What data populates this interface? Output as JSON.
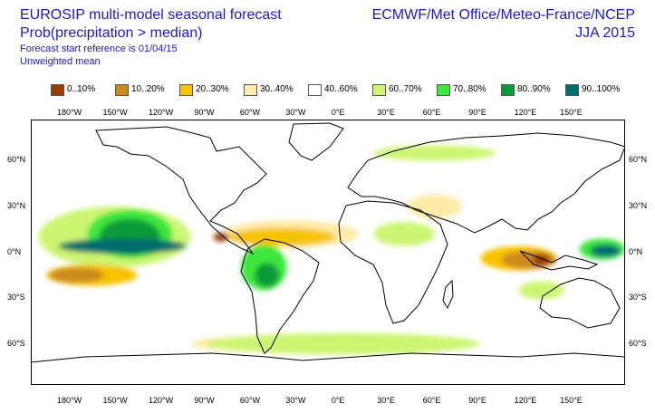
{
  "header": {
    "title": "EUROSIP multi-model seasonal forecast",
    "subtitle": "Prob(precipitation > median)",
    "reference": "Forecast start reference is 01/04/15",
    "mean_type": "Unweighted mean",
    "centres": "ECMWF/Met Office/Meteo-France/NCEP",
    "season": "JJA 2015"
  },
  "legend": [
    {
      "label": "0..10%",
      "color": "#9c3a00"
    },
    {
      "label": "10..20%",
      "color": "#cc8a1c"
    },
    {
      "label": "20..30%",
      "color": "#f7c300"
    },
    {
      "label": "30..40%",
      "color": "#ffeaa8"
    },
    {
      "label": "40..60%",
      "color": "#ffffff"
    },
    {
      "label": "60..70%",
      "color": "#ccf572"
    },
    {
      "label": "70..80%",
      "color": "#3ee63e"
    },
    {
      "label": "80..90%",
      "color": "#0a9a3a"
    },
    {
      "label": "90..100%",
      "color": "#006d6d"
    }
  ],
  "axes": {
    "lon_ticks_top": [
      "180°W",
      "150°W",
      "120°W",
      "90°W",
      "60°W",
      "30°W",
      "0°E",
      "30°E",
      "60°E",
      "90°E",
      "120°E",
      "150°E"
    ],
    "lon_ticks_bottom": [
      "180°W",
      "150°W",
      "120°W",
      "90°W",
      "60°W",
      "30°W",
      "0°E",
      "30°E",
      "60°E",
      "90°E",
      "120°E",
      "150°E"
    ],
    "lat_ticks": [
      "60°N",
      "30°N",
      "0°N",
      "30°S",
      "60°S"
    ]
  },
  "map": {
    "projection": "equirectangular",
    "lon_range": [
      -205,
      185
    ],
    "lat_range": [
      -87,
      87
    ],
    "land_outline_color": "#000000",
    "anomaly_regions": [
      {
        "category": "90..100%",
        "lon": -145,
        "lat": 4,
        "lon_radius": 42,
        "lat_radius": 5
      },
      {
        "category": "80..90%",
        "lon": -140,
        "lat": 10,
        "lon_radius": 20,
        "lat_radius": 12
      },
      {
        "category": "70..80%",
        "lon": -140,
        "lat": 12,
        "lon_radius": 28,
        "lat_radius": 16
      },
      {
        "category": "60..70%",
        "lon": -150,
        "lat": 10,
        "lon_radius": 50,
        "lat_radius": 20
      },
      {
        "category": "80..90%",
        "lon": -50,
        "lat": -15,
        "lon_radius": 8,
        "lat_radius": 8
      },
      {
        "category": "70..80%",
        "lon": -52,
        "lat": -10,
        "lon_radius": 15,
        "lat_radius": 15
      },
      {
        "category": "0..10%",
        "lon": -80,
        "lat": 10,
        "lon_radius": 5,
        "lat_radius": 3
      },
      {
        "category": "20..30%",
        "lon": -40,
        "lat": 10,
        "lon_radius": 35,
        "lat_radius": 6
      },
      {
        "category": "30..40%",
        "lon": -35,
        "lat": 12,
        "lon_radius": 45,
        "lat_radius": 9
      },
      {
        "category": "10..20%",
        "lon": -175,
        "lat": -15,
        "lon_radius": 18,
        "lat_radius": 5
      },
      {
        "category": "20..30%",
        "lon": -165,
        "lat": -15,
        "lon_radius": 30,
        "lat_radius": 7
      },
      {
        "category": "0..10%",
        "lon": 130,
        "lat": -5,
        "lon_radius": 6,
        "lat_radius": 4
      },
      {
        "category": "10..20%",
        "lon": 122,
        "lat": -5,
        "lon_radius": 18,
        "lat_radius": 6
      },
      {
        "category": "20..30%",
        "lon": 115,
        "lat": -4,
        "lon_radius": 25,
        "lat_radius": 8
      },
      {
        "category": "90..100%",
        "lon": 172,
        "lat": 1,
        "lon_radius": 10,
        "lat_radius": 4
      },
      {
        "category": "70..80%",
        "lon": 170,
        "lat": 2,
        "lon_radius": 15,
        "lat_radius": 7
      },
      {
        "category": "60..70%",
        "lon": 40,
        "lat": 12,
        "lon_radius": 20,
        "lat_radius": 8
      },
      {
        "category": "30..40%",
        "lon": 60,
        "lat": 30,
        "lon_radius": 18,
        "lat_radius": 8
      },
      {
        "category": "60..70%",
        "lon": 0,
        "lat": -60,
        "lon_radius": 90,
        "lat_radius": 7
      },
      {
        "category": "60..70%",
        "lon": 60,
        "lat": 65,
        "lon_radius": 40,
        "lat_radius": 5
      },
      {
        "category": "30..40%",
        "lon": -60,
        "lat": -60,
        "lon_radius": 40,
        "lat_radius": 5
      },
      {
        "category": "60..70%",
        "lon": 130,
        "lat": -25,
        "lon_radius": 15,
        "lat_radius": 6
      }
    ]
  }
}
